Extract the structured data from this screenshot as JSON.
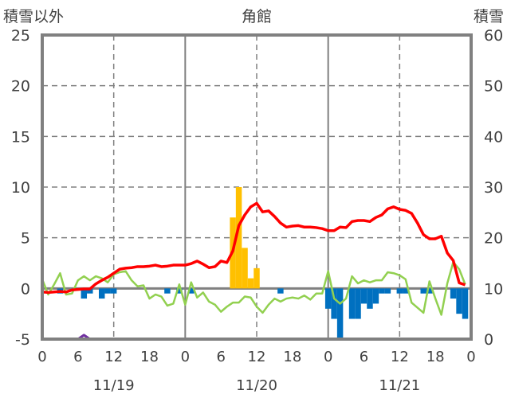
{
  "chart_data": {
    "type": "bar",
    "title": "角館",
    "ylabel_left": "積雪以外",
    "ylabel_right": "積雪",
    "ylim_left": [
      -5,
      25
    ],
    "ylim_right": [
      0,
      60
    ],
    "yticks_left": [
      "25",
      "20",
      "15",
      "10",
      "5",
      "0",
      "-5"
    ],
    "yticks_right": [
      "60",
      "50",
      "40",
      "30",
      "20",
      "10",
      "0"
    ],
    "xticks": [
      "0",
      "6",
      "12",
      "18",
      "0",
      "6",
      "12",
      "18",
      "0",
      "6",
      "12",
      "18",
      "0"
    ],
    "date_labels": [
      "11/19",
      "11/20",
      "11/21"
    ],
    "hours": 72,
    "grid": true,
    "colors": {
      "snow_depth": "#ff0000",
      "temperature": "#92d050",
      "snow_change": "#0070c0",
      "snowfall": "#ffc000",
      "other": "#7030a0",
      "axis": "#808080"
    },
    "series": [
      {
        "name": "snow_depth",
        "axis": "right",
        "kind": "line",
        "values": [
          9.3,
          9.2,
          9.3,
          9.4,
          9.3,
          9.7,
          9.8,
          9.9,
          9.9,
          10.9,
          11.6,
          12.2,
          13.0,
          13.8,
          14.0,
          14.1,
          14.3,
          14.3,
          14.4,
          14.6,
          14.3,
          14.4,
          14.6,
          14.6,
          14.6,
          14.9,
          15.4,
          14.8,
          14.1,
          14.3,
          15.4,
          15.1,
          17.4,
          22.4,
          24.5,
          26.1,
          26.8,
          25.1,
          25.3,
          24.2,
          22.9,
          22.1,
          22.3,
          22.4,
          22.1,
          22.1,
          22.0,
          21.8,
          21.4,
          21.4,
          22.1,
          22.0,
          23.2,
          23.4,
          23.4,
          23.2,
          24.0,
          24.5,
          25.7,
          26.1,
          25.6,
          25.4,
          24.8,
          22.9,
          20.6,
          19.8,
          19.8,
          20.3,
          17.0,
          15.5,
          11.1,
          10.7
        ]
      },
      {
        "name": "temperature",
        "axis": "left",
        "kind": "line",
        "values": [
          0.9,
          -0.6,
          0.4,
          1.5,
          -0.6,
          -0.5,
          0.8,
          1.2,
          0.8,
          1.2,
          1.0,
          0.6,
          1.4,
          1.6,
          1.7,
          0.8,
          0.2,
          0.3,
          -1.0,
          -0.6,
          -0.8,
          -1.7,
          -1.5,
          0.4,
          -1.6,
          0.6,
          -0.9,
          -0.4,
          -1.3,
          -1.6,
          -2.3,
          -1.8,
          -1.4,
          -1.4,
          -0.8,
          -0.9,
          -1.8,
          -2.4,
          -1.6,
          -1.0,
          -1.3,
          -1.0,
          -0.9,
          -1.0,
          -0.7,
          -1.1,
          -0.5,
          -0.5,
          1.7,
          -1.0,
          -1.5,
          -1.0,
          1.2,
          0.5,
          0.8,
          0.6,
          0.8,
          0.8,
          1.6,
          1.5,
          1.3,
          0.9,
          -1.4,
          -1.9,
          -2.4,
          0.7,
          -1.0,
          -2.6,
          0.5,
          2.6,
          1.9,
          0.4
        ]
      },
      {
        "name": "snow_change",
        "axis": "left",
        "kind": "bar",
        "values": {
          "3": -0.5,
          "7": -1.0,
          "8": -0.5,
          "10": -1.0,
          "11": -0.5,
          "12": -0.5,
          "21": -0.5,
          "23": -0.5,
          "25": -0.5,
          "40": -0.5,
          "48": -2.0,
          "49": -3.0,
          "50": -5.0,
          "52": -3.0,
          "53": -3.0,
          "54": -1.5,
          "55": -2.0,
          "56": -1.5,
          "57": -0.5,
          "58": -0.5,
          "60": -0.5,
          "61": -0.5,
          "64": -0.5,
          "65": -0.5,
          "69": -1.0,
          "70": -2.5,
          "71": -3.0
        }
      },
      {
        "name": "snowfall",
        "axis": "left",
        "kind": "bar",
        "values": {
          "32": 7,
          "33": 10,
          "34": 4,
          "35": 1,
          "36": 2
        }
      },
      {
        "name": "other",
        "axis": "left",
        "kind": "line",
        "values": [
          -5,
          -5,
          -5,
          -5,
          -5,
          -5,
          -5,
          -4.6,
          -5,
          -5,
          -5,
          -5,
          -5,
          -5,
          -5,
          -5,
          -5,
          -5,
          -5,
          -5,
          -5,
          -5,
          -5,
          -5,
          -5,
          -5,
          -5,
          -5,
          -5,
          -5,
          -5,
          -5,
          -5,
          -5,
          -5,
          -5,
          -5,
          -5,
          -5,
          -5,
          -5,
          -5,
          -5,
          -5,
          -5,
          -5,
          -5,
          -5,
          -5,
          -5,
          -5,
          -5,
          -5,
          -5,
          -5,
          -5,
          -5,
          -5,
          -5,
          -5,
          -5,
          -5,
          -5,
          -5,
          -5,
          -5,
          -5,
          -5,
          -5,
          -5,
          -5,
          -5
        ]
      }
    ]
  }
}
